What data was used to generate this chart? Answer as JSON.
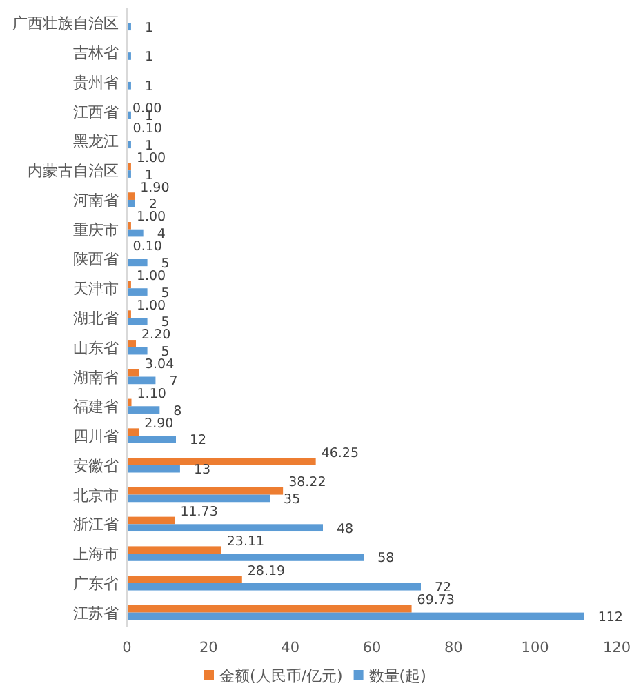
{
  "chart_data": {
    "type": "bar",
    "orientation": "horizontal",
    "categories": [
      "广西壮族自治区",
      "吉林省",
      "贵州省",
      "江西省",
      "黑龙江",
      "内蒙古自治区",
      "河南省",
      "重庆市",
      "陕西省",
      "天津市",
      "湖北省",
      "山东省",
      "湖南省",
      "福建省",
      "四川省",
      "安徽省",
      "北京市",
      "浙江省",
      "上海市",
      "广东省",
      "江苏省"
    ],
    "series": [
      {
        "name": "金额(人民币/亿元)",
        "color": "#ed7d31",
        "values": [
          null,
          null,
          null,
          0.0,
          0.1,
          1.0,
          1.9,
          1.0,
          0.1,
          1.0,
          1.0,
          2.2,
          3.04,
          1.1,
          2.9,
          46.25,
          38.22,
          11.73,
          23.11,
          28.19,
          69.73
        ],
        "value_labels": [
          null,
          null,
          null,
          "0.00",
          "0.10",
          "1.00",
          "1.90",
          "1.00",
          "0.10",
          "1.00",
          "1.00",
          "2.20",
          "3.04",
          "1.10",
          "2.90",
          "46.25",
          "38.22",
          "11.73",
          "23.11",
          "28.19",
          "69.73"
        ]
      },
      {
        "name": "数量(起)",
        "color": "#5b9bd5",
        "values": [
          1,
          1,
          1,
          1,
          1,
          1,
          2,
          4,
          5,
          5,
          5,
          5,
          7,
          8,
          12,
          13,
          35,
          48,
          58,
          72,
          112
        ],
        "data_labels": true
      }
    ],
    "xlim": [
      0,
      120
    ],
    "xticks": [
      0,
      20,
      40,
      60,
      80,
      100,
      120
    ],
    "grid": false,
    "legend": "bottom"
  }
}
